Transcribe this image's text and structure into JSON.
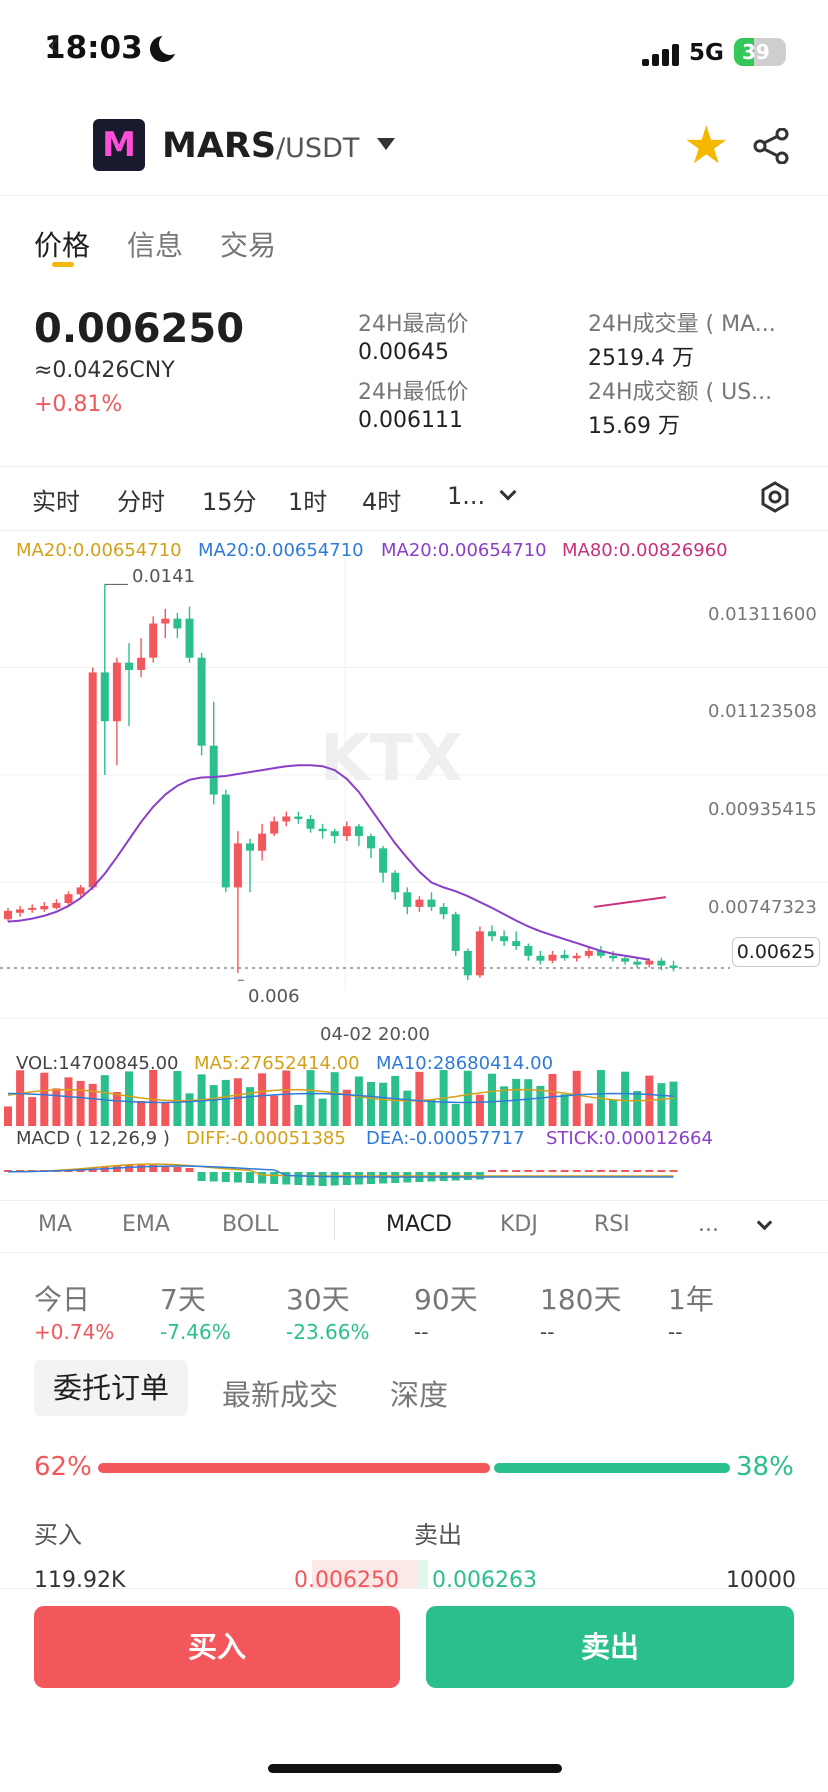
{
  "status_bar": {
    "time": "18:03",
    "network": "5G",
    "battery": "39"
  },
  "header": {
    "base": "MARS",
    "quote": "/USDT"
  },
  "tabs": [
    "价格",
    "信息",
    "交易"
  ],
  "price": {
    "last": "0.006250",
    "cny": "≈0.0426CNY",
    "change": "+0.81%"
  },
  "stats": {
    "high_label": "24H最高价",
    "high_value": "0.00645",
    "low_label": "24H最低价",
    "low_value": "0.006111",
    "vol_label": "24H成交量 ( MA...",
    "vol_value": "2519.4 万",
    "amount_label": "24H成交额 ( US...",
    "amount_value": "15.69 万"
  },
  "timeframes": [
    "实时",
    "分时",
    "15分",
    "1时",
    "4时",
    "1..."
  ],
  "ma_legend": {
    "ma20_a": "MA20:0.00654710",
    "ma20_b": "MA20:0.00654710",
    "ma20_c": "MA20:0.00654710",
    "ma80": "MA80:0.00826960"
  },
  "chart_data": {
    "type": "candlestick",
    "y_axis_ticks": [
      "0.01311600",
      "0.01123508",
      "0.00935415",
      "0.00747323"
    ],
    "last_price_label": "0.00625",
    "max_label": "0.0141",
    "min_label": "0.006",
    "x_tick": "04-02 20:00",
    "ylim": [
      0.0058,
      0.0146
    ],
    "candles": [
      {
        "o": 0.00725,
        "c": 0.00742,
        "h": 0.00748,
        "l": 0.0072
      },
      {
        "o": 0.00738,
        "c": 0.00745,
        "h": 0.00752,
        "l": 0.0073
      },
      {
        "o": 0.00744,
        "c": 0.00748,
        "h": 0.00755,
        "l": 0.00738
      },
      {
        "o": 0.00745,
        "c": 0.00752,
        "h": 0.0076,
        "l": 0.0074
      },
      {
        "o": 0.00748,
        "c": 0.00758,
        "h": 0.00766,
        "l": 0.00745
      },
      {
        "o": 0.00758,
        "c": 0.00776,
        "h": 0.00782,
        "l": 0.00754
      },
      {
        "o": 0.00776,
        "c": 0.0079,
        "h": 0.00795,
        "l": 0.0077
      },
      {
        "o": 0.0079,
        "c": 0.0123,
        "h": 0.0124,
        "l": 0.00785
      },
      {
        "o": 0.0123,
        "c": 0.0113,
        "h": 0.0141,
        "l": 0.0102
      },
      {
        "o": 0.0113,
        "c": 0.0125,
        "h": 0.0126,
        "l": 0.0104
      },
      {
        "o": 0.0125,
        "c": 0.01235,
        "h": 0.0129,
        "l": 0.0112
      },
      {
        "o": 0.01235,
        "c": 0.0126,
        "h": 0.013,
        "l": 0.0122
      },
      {
        "o": 0.0126,
        "c": 0.0133,
        "h": 0.01345,
        "l": 0.0125
      },
      {
        "o": 0.0133,
        "c": 0.0134,
        "h": 0.0136,
        "l": 0.013
      },
      {
        "o": 0.0134,
        "c": 0.0132,
        "h": 0.01352,
        "l": 0.013
      },
      {
        "o": 0.0134,
        "c": 0.0126,
        "h": 0.01365,
        "l": 0.0125
      },
      {
        "o": 0.0126,
        "c": 0.0108,
        "h": 0.0127,
        "l": 0.0106
      },
      {
        "o": 0.0108,
        "c": 0.0098,
        "h": 0.0117,
        "l": 0.0096
      },
      {
        "o": 0.0098,
        "c": 0.0079,
        "h": 0.0099,
        "l": 0.0078
      },
      {
        "o": 0.0079,
        "c": 0.0088,
        "h": 0.00905,
        "l": 0.00615
      },
      {
        "o": 0.0088,
        "c": 0.00865,
        "h": 0.0089,
        "l": 0.0078
      },
      {
        "o": 0.00865,
        "c": 0.009,
        "h": 0.0092,
        "l": 0.00845
      },
      {
        "o": 0.009,
        "c": 0.00925,
        "h": 0.00935,
        "l": 0.00895
      },
      {
        "o": 0.00925,
        "c": 0.00935,
        "h": 0.00945,
        "l": 0.00915
      },
      {
        "o": 0.00935,
        "c": 0.0093,
        "h": 0.00945,
        "l": 0.0092
      },
      {
        "o": 0.0093,
        "c": 0.0091,
        "h": 0.00938,
        "l": 0.00902
      },
      {
        "o": 0.0091,
        "c": 0.00905,
        "h": 0.0092,
        "l": 0.0089
      },
      {
        "o": 0.00905,
        "c": 0.00895,
        "h": 0.0091,
        "l": 0.0088
      },
      {
        "o": 0.00895,
        "c": 0.00915,
        "h": 0.00925,
        "l": 0.00885
      },
      {
        "o": 0.00915,
        "c": 0.00895,
        "h": 0.0092,
        "l": 0.00875
      },
      {
        "o": 0.00895,
        "c": 0.0087,
        "h": 0.009,
        "l": 0.0085
      },
      {
        "o": 0.0087,
        "c": 0.0082,
        "h": 0.00875,
        "l": 0.008
      },
      {
        "o": 0.0082,
        "c": 0.0078,
        "h": 0.00825,
        "l": 0.00765
      },
      {
        "o": 0.0078,
        "c": 0.0075,
        "h": 0.0079,
        "l": 0.00735
      },
      {
        "o": 0.0075,
        "c": 0.00765,
        "h": 0.00772,
        "l": 0.0074
      },
      {
        "o": 0.00765,
        "c": 0.0075,
        "h": 0.0078,
        "l": 0.00742
      },
      {
        "o": 0.0075,
        "c": 0.00735,
        "h": 0.00758,
        "l": 0.00725
      },
      {
        "o": 0.00735,
        "c": 0.0066,
        "h": 0.0074,
        "l": 0.0065
      },
      {
        "o": 0.0066,
        "c": 0.0061,
        "h": 0.00665,
        "l": 0.006
      },
      {
        "o": 0.0061,
        "c": 0.007,
        "h": 0.0071,
        "l": 0.00605
      },
      {
        "o": 0.007,
        "c": 0.0069,
        "h": 0.00712,
        "l": 0.0068
      },
      {
        "o": 0.0069,
        "c": 0.0068,
        "h": 0.00702,
        "l": 0.0067
      },
      {
        "o": 0.0068,
        "c": 0.0067,
        "h": 0.007,
        "l": 0.00662
      },
      {
        "o": 0.0067,
        "c": 0.0065,
        "h": 0.00675,
        "l": 0.0064
      },
      {
        "o": 0.0065,
        "c": 0.0064,
        "h": 0.0066,
        "l": 0.00632
      },
      {
        "o": 0.0064,
        "c": 0.00652,
        "h": 0.0066,
        "l": 0.00635
      },
      {
        "o": 0.00652,
        "c": 0.00645,
        "h": 0.00662,
        "l": 0.0064
      },
      {
        "o": 0.00645,
        "c": 0.0065,
        "h": 0.00656,
        "l": 0.00638
      },
      {
        "o": 0.0065,
        "c": 0.0066,
        "h": 0.00666,
        "l": 0.00645
      },
      {
        "o": 0.0066,
        "c": 0.0065,
        "h": 0.0067,
        "l": 0.00645
      },
      {
        "o": 0.0065,
        "c": 0.00645,
        "h": 0.0066,
        "l": 0.00638
      },
      {
        "o": 0.00645,
        "c": 0.00638,
        "h": 0.0065,
        "l": 0.00632
      },
      {
        "o": 0.00638,
        "c": 0.00632,
        "h": 0.00645,
        "l": 0.00626
      },
      {
        "o": 0.00632,
        "c": 0.0064,
        "h": 0.00645,
        "l": 0.00626
      },
      {
        "o": 0.0064,
        "c": 0.0063,
        "h": 0.00646,
        "l": 0.0062
      },
      {
        "o": 0.0063,
        "c": 0.00625,
        "h": 0.0064,
        "l": 0.00618
      }
    ],
    "ma_line": [
      0.0072,
      0.00722,
      0.00726,
      0.00732,
      0.0074,
      0.00752,
      0.00768,
      0.0079,
      0.00818,
      0.00852,
      0.00888,
      0.00924,
      0.00955,
      0.0098,
      0.00998,
      0.0101,
      0.01015,
      0.01016,
      0.01018,
      0.01022,
      0.01026,
      0.0103,
      0.01034,
      0.01038,
      0.0104,
      0.0104,
      0.01038,
      0.0103,
      0.01012,
      0.00985,
      0.0095,
      0.00915,
      0.0088,
      0.0085,
      0.00822,
      0.008,
      0.0079,
      0.00782,
      0.00772,
      0.0076,
      0.00748,
      0.00735,
      0.00722,
      0.0071,
      0.007,
      0.00692,
      0.00684,
      0.00676,
      0.00668,
      0.0066,
      0.00654,
      0.0065,
      0.00646,
      0.00642
    ],
    "ma80_line": [
      0.0075,
      0.0076,
      0.0077
    ],
    "volume": {
      "label": "VOL:14700845.00",
      "ma5": "MA5:27652414.00",
      "ma10": "MA10:28680414.00"
    },
    "macd": {
      "label": "MACD ( 12,26,9 )",
      "diff": "DIFF:-0.00051385",
      "dea": "DEA:-0.00057717",
      "stick": "STICK:0.00012664"
    }
  },
  "indicator_tabs": [
    "MA",
    "EMA",
    "BOLL",
    "MACD",
    "KDJ",
    "RSI",
    "..."
  ],
  "periods": [
    {
      "label": "今日",
      "value": "+0.74%"
    },
    {
      "label": "7天",
      "value": "-7.46%"
    },
    {
      "label": "30天",
      "value": "-23.66%"
    },
    {
      "label": "90天",
      "value": "--"
    },
    {
      "label": "180天",
      "value": "--"
    },
    {
      "label": "1年",
      "value": "--"
    }
  ],
  "order_tabs": [
    "委托订单",
    "最新成交",
    "深度"
  ],
  "depth_ratio": {
    "buy": "62%",
    "sell": "38%"
  },
  "orderbook": {
    "buy_label": "买入",
    "sell_label": "卖出",
    "row": {
      "buy_qty": "119.92K",
      "buy_price": "0.006250",
      "sell_price": "0.006263",
      "sell_qty": "10000"
    }
  },
  "buttons": {
    "buy": "买入",
    "sell": "卖出"
  },
  "colors": {
    "up": "#f2575b",
    "down": "#2bbf8d",
    "accent": "#f0b90b",
    "ma_purple": "#8a3fc9",
    "ma80": "#c8327a"
  }
}
